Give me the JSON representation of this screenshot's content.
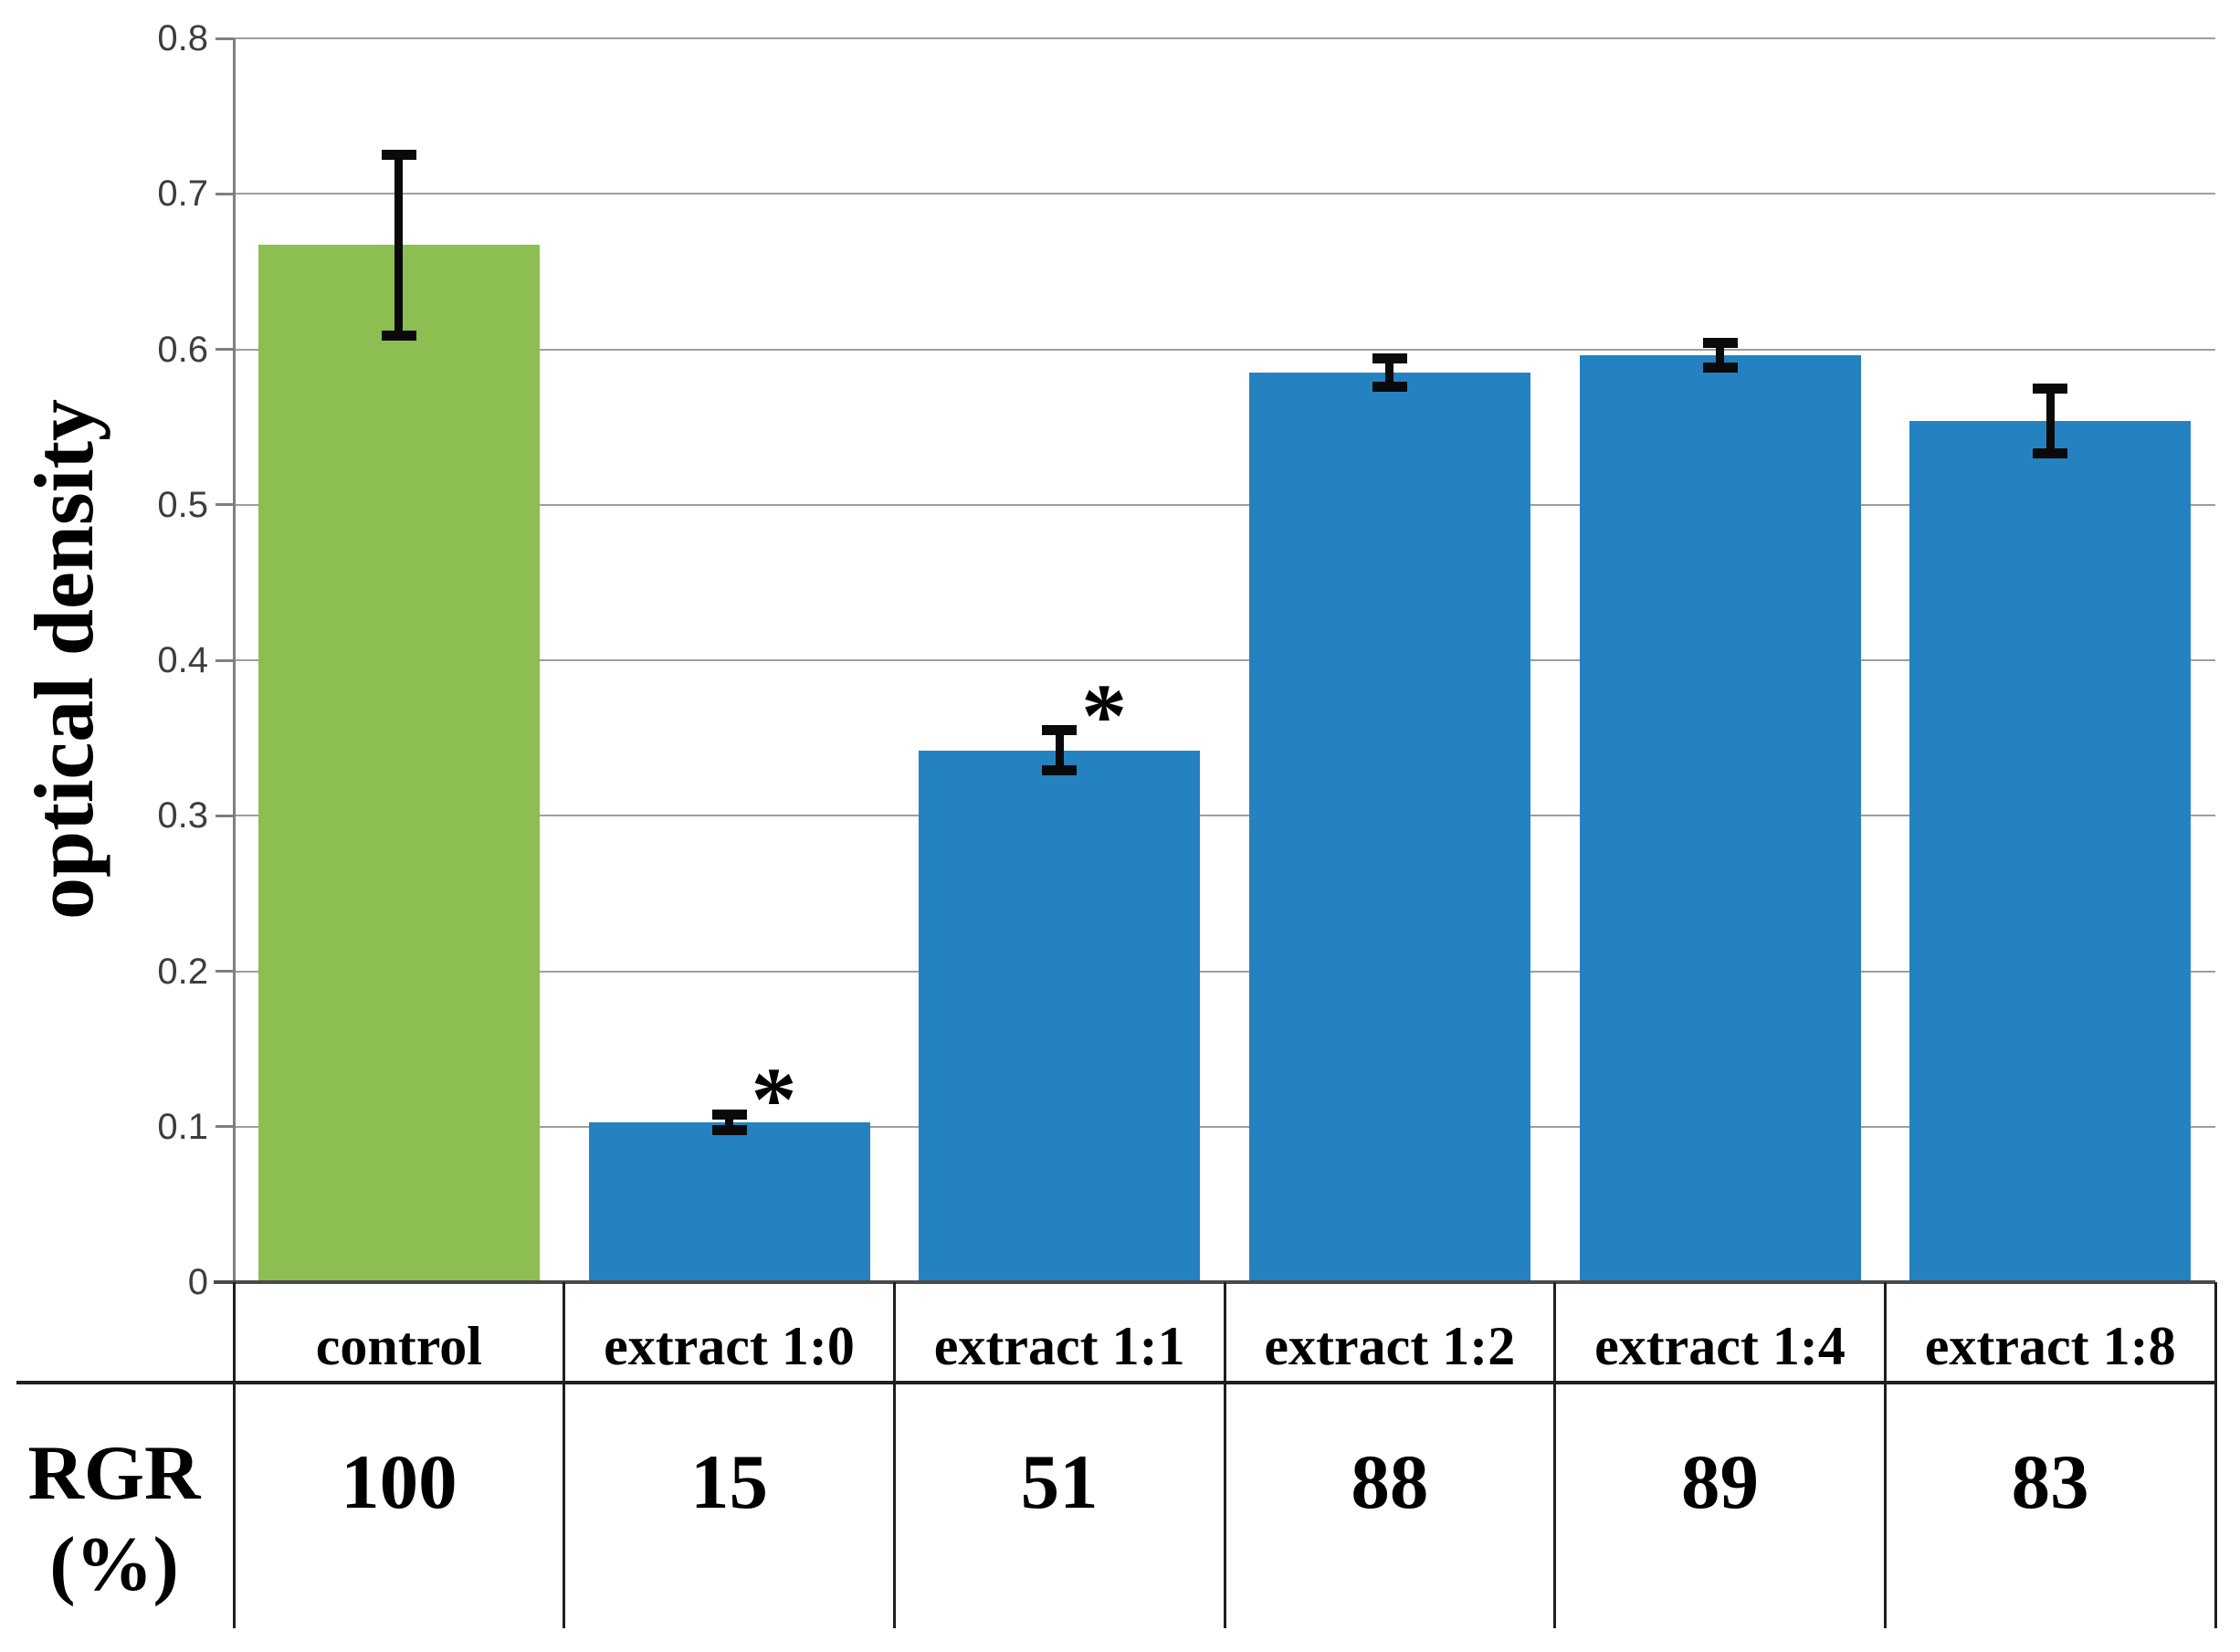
{
  "chart_data": {
    "type": "bar",
    "title": "",
    "xlabel": "",
    "ylabel": "optical density",
    "ylim": [
      0,
      0.8
    ],
    "ytick_step": 0.1,
    "ytick_labels": [
      "0",
      "0.1",
      "0.2",
      "0.3",
      "0.4",
      "0.5",
      "0.6",
      "0.7",
      "0.8"
    ],
    "grid": true,
    "legend_position": "none",
    "categories": [
      "control",
      "extract 1:0",
      "extract 1:1",
      "extract 1:2",
      "extract 1:4",
      "extract 1:8"
    ],
    "series": [
      {
        "name": "optical density",
        "values": [
          0.667,
          0.103,
          0.342,
          0.585,
          0.596,
          0.554
        ],
        "errors": [
          0.058,
          0.005,
          0.013,
          0.009,
          0.008,
          0.021
        ]
      }
    ],
    "significance_marks": [
      "",
      "*",
      "*",
      "",
      "",
      ""
    ],
    "bar_colors": [
      "#8CBE51",
      "#2582C0",
      "#2582C0",
      "#2582C0",
      "#2582C0",
      "#2582C0"
    ]
  },
  "table": {
    "row_label_line1": "RGR",
    "row_label_line2": "(%)",
    "rgr_values": [
      "100",
      "15",
      "51",
      "88",
      "89",
      "83"
    ]
  },
  "colors": {
    "grid": "#9E9E9E",
    "axis": "#7F7F7F",
    "baseline": "#4A4A4A",
    "table_border": "#1F1F1F",
    "error_bar": "#0A0A0A",
    "tick_text": "#3D3D3D",
    "text": "#000000",
    "background": "#FFFFFF"
  }
}
